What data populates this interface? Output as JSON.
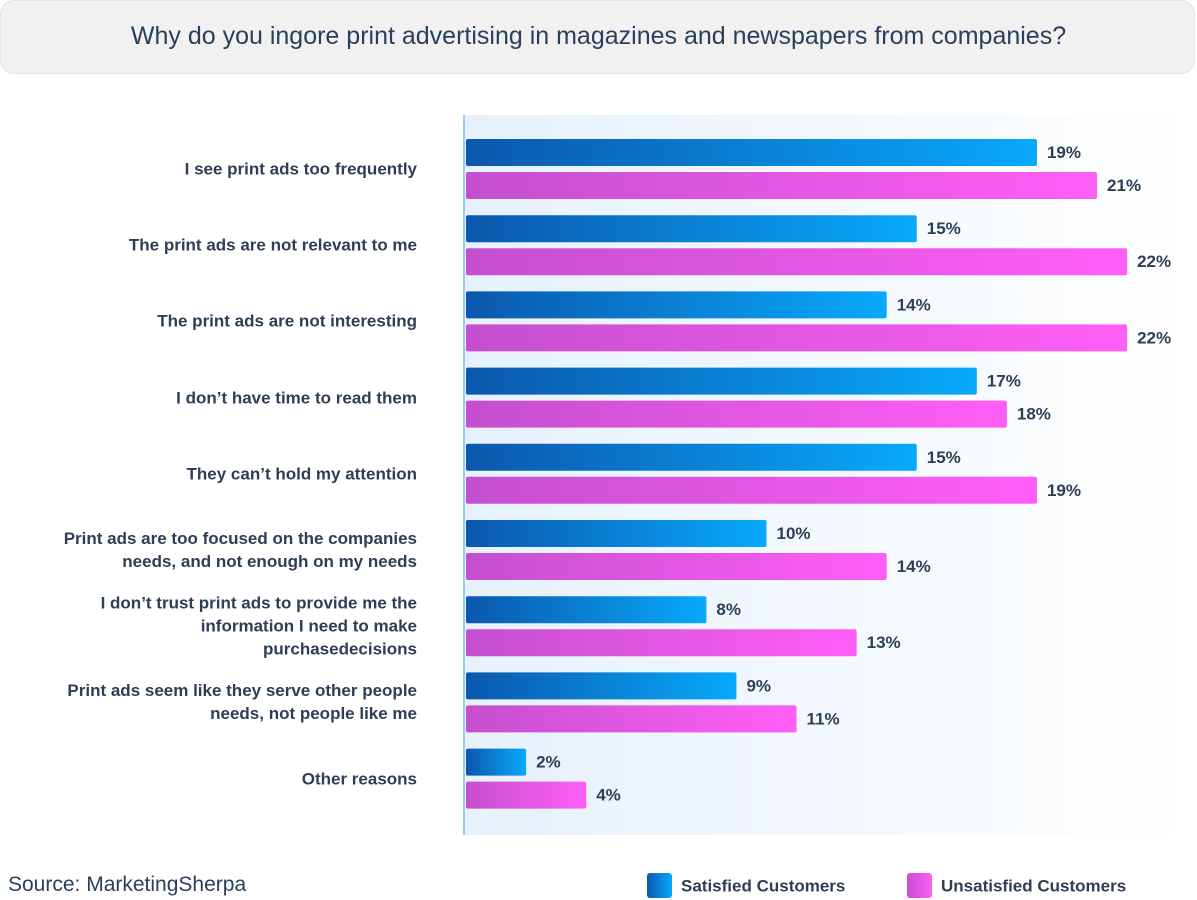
{
  "chart_data": {
    "type": "hbar",
    "title": "Why do you ingore print advertising in magazines and newspapers from companies?",
    "source": "Source: MarketingSherpa",
    "categories": [
      "I see print ads too frequently",
      "The print ads are not relevant to me",
      "The print ads are not interesting",
      "I don’t have time to read them",
      "They can’t hold my attention",
      "Print ads are too focused on the companies\nneeds, and not enough on my needs",
      "I don’t trust print ads to provide me the\ninformation I need to make\npurchasedecisions",
      "Print ads seem like they serve other people\nneeds, not people like me",
      "Other reasons"
    ],
    "series": [
      {
        "name": "Satisfied Customers",
        "gradient": [
          "#0b58ad",
          "#08a9fb"
        ],
        "values": [
          19,
          15,
          14,
          17,
          15,
          10,
          8,
          9,
          2
        ],
        "value_labels": [
          "19%",
          "15%",
          "14%",
          "17%",
          "15%",
          "10%",
          "8%",
          "9%",
          "2%"
        ]
      },
      {
        "name": "Unsatisfied Customers",
        "gradient": [
          "#c54fcf",
          "#ff5ef6"
        ],
        "values": [
          21,
          22,
          22,
          18,
          19,
          14,
          13,
          11,
          4
        ],
        "value_labels": [
          "21%",
          "22%",
          "22%",
          "18%",
          "19%",
          "14%",
          "13%",
          "11%",
          "4%"
        ]
      }
    ],
    "xlim": [
      0,
      24
    ]
  }
}
